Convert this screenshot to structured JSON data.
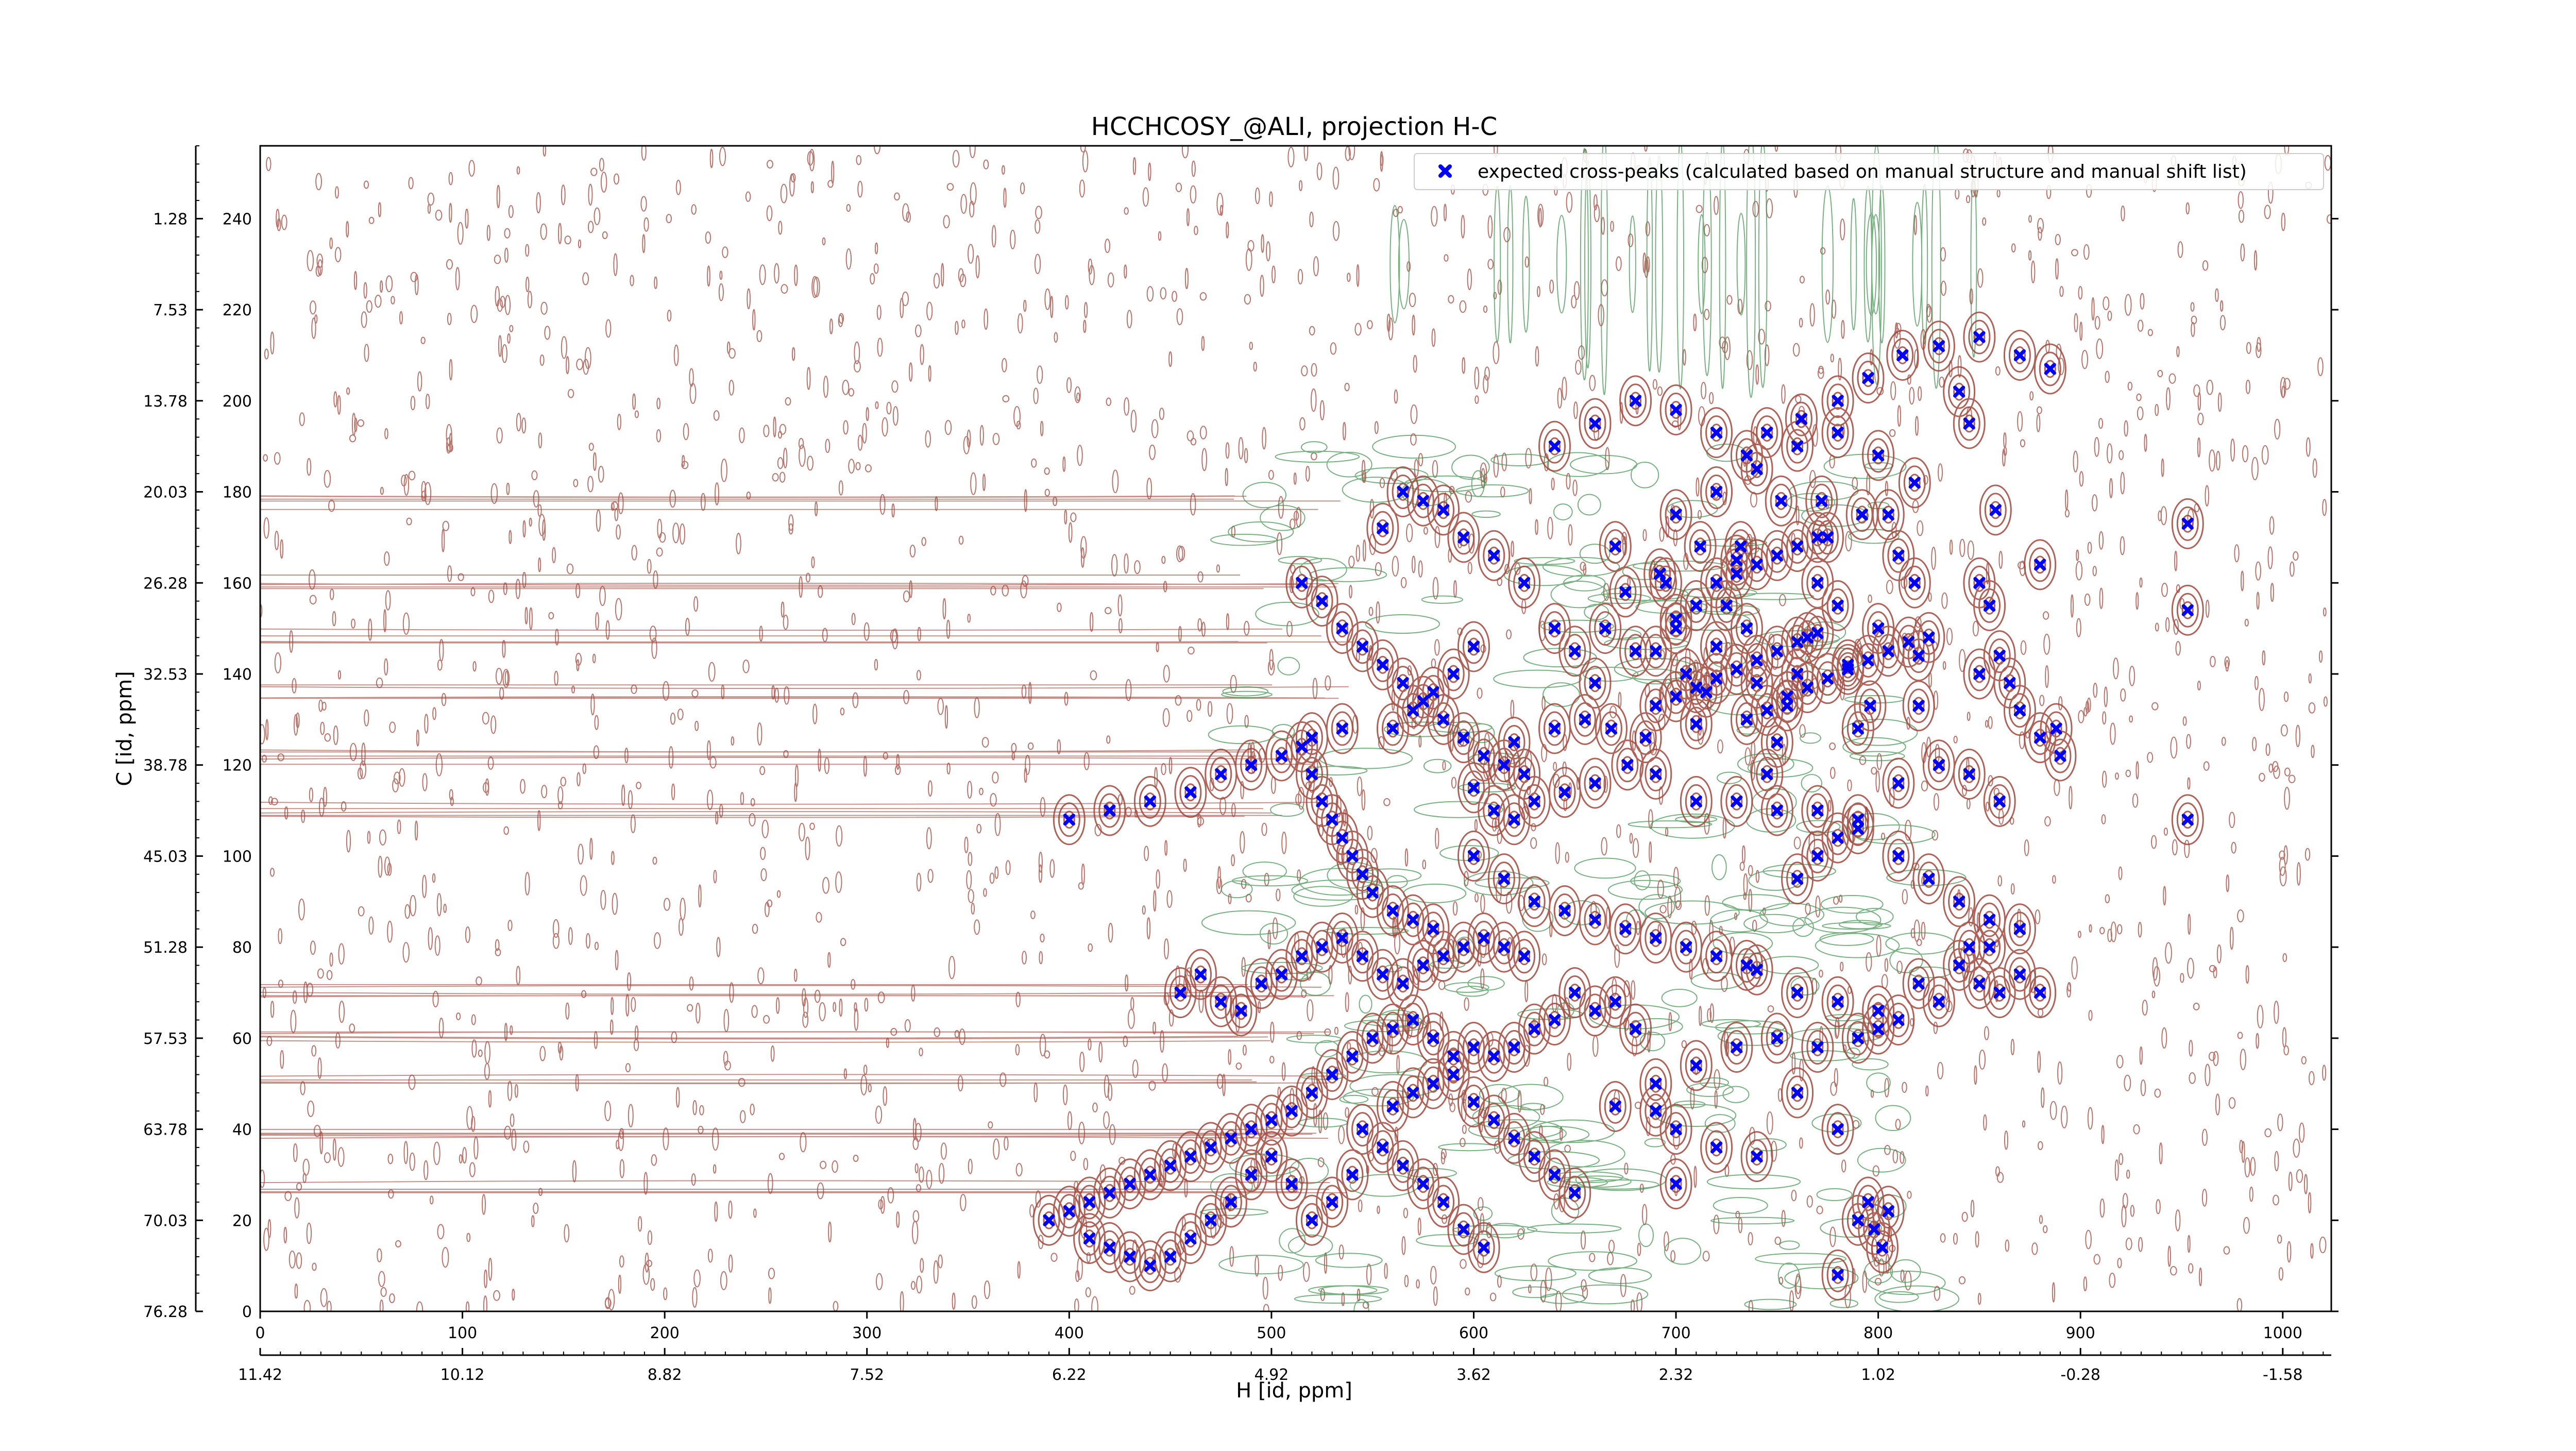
{
  "chart_data": {
    "type": "scatter",
    "title": "HCCHCOSY_@ALI, projection H-C",
    "xlabel": "H [id, ppm]",
    "ylabel": "C [id, ppm]",
    "x_index_ticks": [
      "0",
      "100",
      "200",
      "300",
      "400",
      "500",
      "600",
      "700",
      "800",
      "900",
      "1000"
    ],
    "x_index_range": [
      0,
      1024
    ],
    "y_index_ticks": [
      "0",
      "20",
      "40",
      "60",
      "80",
      "100",
      "120",
      "140",
      "160",
      "180",
      "200",
      "220",
      "240"
    ],
    "y_index_range": [
      0,
      256
    ],
    "x_ppm_ticks": [
      "11.42",
      "10.12",
      "8.82",
      "7.52",
      "6.22",
      "4.92",
      "3.62",
      "2.32",
      "1.02",
      "-0.28",
      "-1.58"
    ],
    "y_ppm_ticks": [
      "76.28",
      "70.03",
      "63.78",
      "57.53",
      "51.28",
      "45.03",
      "38.78",
      "32.53",
      "26.28",
      "20.03",
      "13.78",
      "7.53",
      "1.28"
    ],
    "legend": {
      "label": "expected cross-peaks (calculated based on manual structure and manual shift list)",
      "placement": "top-right"
    },
    "grid": false,
    "contours": {
      "positive_color": "#a0473c",
      "negative_color": "#3f8f4e"
    },
    "series": [
      {
        "name": "expected cross-peaks (calculated based on manual structure and manual shift list)",
        "color": "#0000ff",
        "marker": "X",
        "points": [
          [
            953,
            173
          ],
          [
            953,
            154
          ],
          [
            953,
            108
          ],
          [
            888,
            128
          ],
          [
            865,
            138
          ],
          [
            860,
            144
          ],
          [
            858,
            176
          ],
          [
            855,
            155
          ],
          [
            850,
            160
          ],
          [
            880,
            164
          ],
          [
            855,
            80
          ],
          [
            845,
            80
          ],
          [
            845,
            195
          ],
          [
            840,
            202
          ],
          [
            825,
            148
          ],
          [
            820,
            133
          ],
          [
            820,
            144
          ],
          [
            818,
            160
          ],
          [
            810,
            166
          ],
          [
            805,
            175
          ],
          [
            800,
            150
          ],
          [
            796,
            133
          ],
          [
            790,
            128
          ],
          [
            785,
            142
          ],
          [
            780,
            155
          ],
          [
            775,
            170
          ],
          [
            770,
            160
          ],
          [
            765,
            148
          ],
          [
            760,
            140
          ],
          [
            755,
            133
          ],
          [
            750,
            125
          ],
          [
            745,
            118
          ],
          [
            740,
            138
          ],
          [
            735,
            150
          ],
          [
            730,
            165
          ],
          [
            725,
            155
          ],
          [
            720,
            146
          ],
          [
            715,
            136
          ],
          [
            710,
            129
          ],
          [
            705,
            140
          ],
          [
            700,
            152
          ],
          [
            695,
            160
          ],
          [
            690,
            133
          ],
          [
            685,
            126
          ],
          [
            680,
            145
          ],
          [
            675,
            158
          ],
          [
            670,
            168
          ],
          [
            665,
            150
          ],
          [
            660,
            138
          ],
          [
            700,
            175
          ],
          [
            720,
            180
          ],
          [
            740,
            185
          ],
          [
            760,
            190
          ],
          [
            780,
            193
          ],
          [
            800,
            188
          ],
          [
            818,
            182
          ],
          [
            792,
            175
          ],
          [
            772,
            178
          ],
          [
            752,
            178
          ],
          [
            732,
            168
          ],
          [
            712,
            168
          ],
          [
            692,
            162
          ],
          [
            676,
            120
          ],
          [
            660,
            116
          ],
          [
            645,
            114
          ],
          [
            630,
            112
          ],
          [
            620,
            108
          ],
          [
            610,
            110
          ],
          [
            600,
            115
          ],
          [
            620,
            125
          ],
          [
            640,
            128
          ],
          [
            655,
            130
          ],
          [
            668,
            128
          ],
          [
            690,
            118
          ],
          [
            710,
            112
          ],
          [
            730,
            112
          ],
          [
            750,
            110
          ],
          [
            770,
            110
          ],
          [
            790,
            108
          ],
          [
            810,
            116
          ],
          [
            830,
            120
          ],
          [
            845,
            118
          ],
          [
            860,
            112
          ],
          [
            740,
            75
          ],
          [
            760,
            70
          ],
          [
            780,
            68
          ],
          [
            800,
            66
          ],
          [
            790,
            60
          ],
          [
            770,
            58
          ],
          [
            750,
            60
          ],
          [
            730,
            58
          ],
          [
            710,
            54
          ],
          [
            690,
            50
          ],
          [
            670,
            45
          ],
          [
            700,
            40
          ],
          [
            720,
            36
          ],
          [
            740,
            34
          ],
          [
            760,
            48
          ],
          [
            780,
            40
          ],
          [
            800,
            62
          ],
          [
            820,
            72
          ],
          [
            840,
            76
          ],
          [
            860,
            70
          ],
          [
            880,
            70
          ],
          [
            870,
            74
          ],
          [
            850,
            72
          ],
          [
            830,
            68
          ],
          [
            810,
            64
          ],
          [
            795,
            24
          ],
          [
            798,
            18
          ],
          [
            802,
            14
          ],
          [
            790,
            20
          ],
          [
            805,
            22
          ],
          [
            780,
            8
          ],
          [
            700,
            28
          ],
          [
            690,
            44
          ],
          [
            680,
            62
          ],
          [
            670,
            68
          ],
          [
            660,
            66
          ],
          [
            650,
            70
          ],
          [
            640,
            64
          ],
          [
            630,
            62
          ],
          [
            620,
            58
          ],
          [
            610,
            56
          ],
          [
            600,
            58
          ],
          [
            590,
            56
          ],
          [
            580,
            60
          ],
          [
            570,
            64
          ],
          [
            560,
            62
          ],
          [
            550,
            60
          ],
          [
            540,
            56
          ],
          [
            530,
            52
          ],
          [
            520,
            48
          ],
          [
            510,
            44
          ],
          [
            500,
            42
          ],
          [
            490,
            40
          ],
          [
            480,
            38
          ],
          [
            470,
            36
          ],
          [
            460,
            34
          ],
          [
            450,
            32
          ],
          [
            440,
            30
          ],
          [
            430,
            28
          ],
          [
            420,
            26
          ],
          [
            410,
            24
          ],
          [
            400,
            22
          ],
          [
            390,
            20
          ],
          [
            545,
            40
          ],
          [
            555,
            36
          ],
          [
            565,
            32
          ],
          [
            575,
            28
          ],
          [
            585,
            24
          ],
          [
            595,
            18
          ],
          [
            605,
            14
          ],
          [
            560,
            45
          ],
          [
            570,
            48
          ],
          [
            580,
            50
          ],
          [
            590,
            52
          ],
          [
            600,
            46
          ],
          [
            610,
            42
          ],
          [
            620,
            38
          ],
          [
            630,
            34
          ],
          [
            640,
            30
          ],
          [
            650,
            26
          ],
          [
            540,
            30
          ],
          [
            530,
            24
          ],
          [
            520,
            20
          ],
          [
            510,
            28
          ],
          [
            500,
            34
          ],
          [
            490,
            30
          ],
          [
            480,
            24
          ],
          [
            470,
            20
          ],
          [
            460,
            16
          ],
          [
            450,
            12
          ],
          [
            440,
            10
          ],
          [
            430,
            12
          ],
          [
            420,
            14
          ],
          [
            410,
            16
          ],
          [
            455,
            70
          ],
          [
            465,
            74
          ],
          [
            475,
            68
          ],
          [
            485,
            66
          ],
          [
            495,
            72
          ],
          [
            505,
            74
          ],
          [
            515,
            78
          ],
          [
            525,
            80
          ],
          [
            535,
            82
          ],
          [
            545,
            78
          ],
          [
            555,
            74
          ],
          [
            565,
            72
          ],
          [
            575,
            76
          ],
          [
            585,
            78
          ],
          [
            595,
            80
          ],
          [
            605,
            82
          ],
          [
            615,
            80
          ],
          [
            625,
            78
          ],
          [
            515,
            160
          ],
          [
            525,
            156
          ],
          [
            535,
            150
          ],
          [
            545,
            146
          ],
          [
            555,
            142
          ],
          [
            565,
            138
          ],
          [
            575,
            134
          ],
          [
            585,
            130
          ],
          [
            595,
            126
          ],
          [
            605,
            122
          ],
          [
            615,
            120
          ],
          [
            625,
            118
          ],
          [
            515,
            124
          ],
          [
            520,
            118
          ],
          [
            525,
            112
          ],
          [
            530,
            108
          ],
          [
            535,
            104
          ],
          [
            540,
            100
          ],
          [
            545,
            96
          ],
          [
            550,
            92
          ],
          [
            560,
            88
          ],
          [
            570,
            86
          ],
          [
            580,
            84
          ],
          [
            400,
            108
          ],
          [
            420,
            110
          ],
          [
            440,
            112
          ],
          [
            460,
            114
          ],
          [
            475,
            118
          ],
          [
            490,
            120
          ],
          [
            505,
            122
          ],
          [
            520,
            126
          ],
          [
            535,
            128
          ],
          [
            555,
            172
          ],
          [
            565,
            180
          ],
          [
            575,
            178
          ],
          [
            585,
            176
          ],
          [
            595,
            170
          ],
          [
            610,
            166
          ],
          [
            625,
            160
          ],
          [
            640,
            150
          ],
          [
            650,
            145
          ],
          [
            600,
            146
          ],
          [
            590,
            140
          ],
          [
            580,
            136
          ],
          [
            570,
            132
          ],
          [
            560,
            128
          ],
          [
            640,
            190
          ],
          [
            660,
            195
          ],
          [
            680,
            200
          ],
          [
            700,
            198
          ],
          [
            720,
            193
          ],
          [
            735,
            188
          ],
          [
            745,
            193
          ],
          [
            762,
            196
          ],
          [
            780,
            200
          ],
          [
            795,
            205
          ],
          [
            812,
            210
          ],
          [
            830,
            212
          ],
          [
            850,
            214
          ],
          [
            870,
            210
          ],
          [
            885,
            207
          ],
          [
            600,
            100
          ],
          [
            615,
            95
          ],
          [
            630,
            90
          ],
          [
            645,
            88
          ],
          [
            660,
            86
          ],
          [
            675,
            84
          ],
          [
            690,
            82
          ],
          [
            705,
            80
          ],
          [
            720,
            78
          ],
          [
            735,
            76
          ],
          [
            760,
            95
          ],
          [
            770,
            100
          ],
          [
            780,
            104
          ],
          [
            790,
            106
          ],
          [
            810,
            100
          ],
          [
            825,
            95
          ],
          [
            840,
            90
          ],
          [
            855,
            86
          ],
          [
            870,
            84
          ],
          [
            850,
            140
          ],
          [
            870,
            132
          ],
          [
            880,
            126
          ],
          [
            890,
            122
          ],
          [
            735,
            130
          ],
          [
            745,
            132
          ],
          [
            755,
            135
          ],
          [
            765,
            137
          ],
          [
            775,
            139
          ],
          [
            785,
            141
          ],
          [
            795,
            143
          ],
          [
            805,
            145
          ],
          [
            815,
            147
          ],
          [
            700,
            135
          ],
          [
            710,
            137
          ],
          [
            720,
            139
          ],
          [
            730,
            141
          ],
          [
            740,
            143
          ],
          [
            750,
            145
          ],
          [
            760,
            147
          ],
          [
            770,
            149
          ],
          [
            690,
            145
          ],
          [
            700,
            150
          ],
          [
            710,
            155
          ],
          [
            720,
            160
          ],
          [
            730,
            162
          ],
          [
            740,
            164
          ],
          [
            750,
            166
          ],
          [
            760,
            168
          ],
          [
            770,
            170
          ]
        ]
      }
    ]
  }
}
